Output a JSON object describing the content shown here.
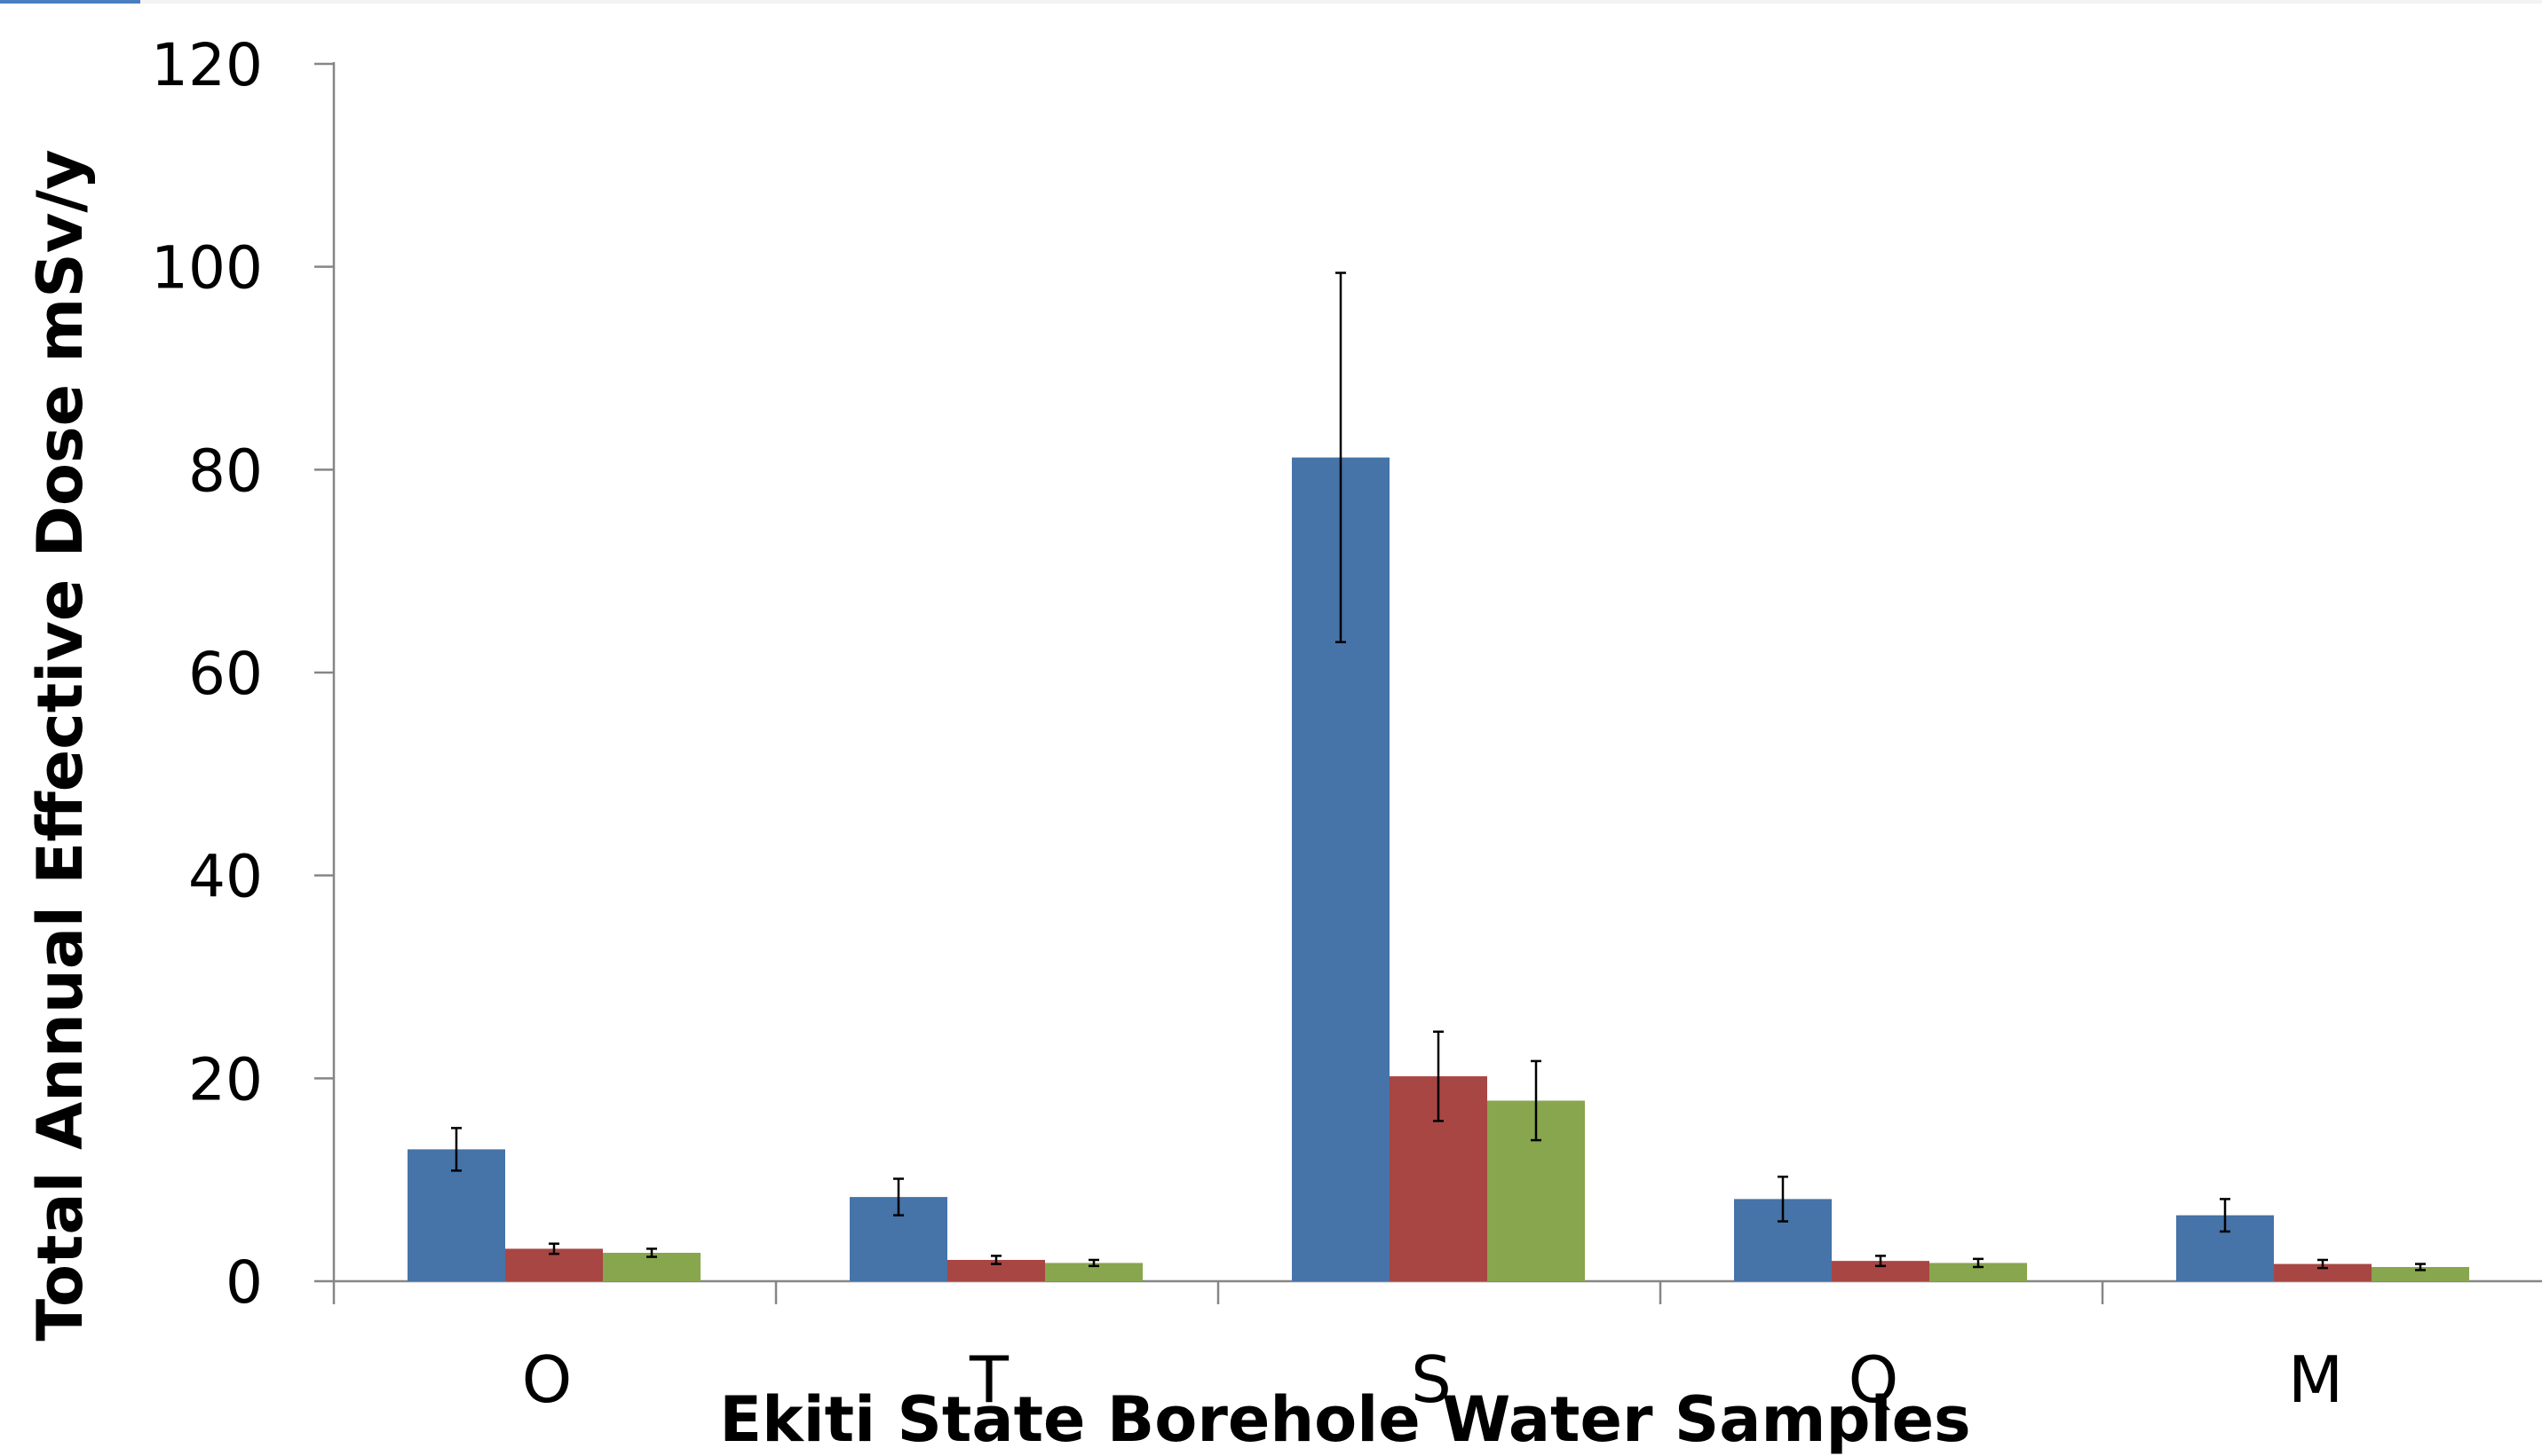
{
  "colors": {
    "series": [
      "#4673a8",
      "#a84643",
      "#88a64d"
    ],
    "axis": "#868686",
    "error_bar": "#000000"
  },
  "chart_data": {
    "type": "bar",
    "title": "",
    "xlabel": "Ekiti State Borehole Water Samples",
    "ylabel": "Total Annual Effective Dose mSv/y",
    "categories": [
      "O",
      "T",
      "S",
      "Q",
      "M"
    ],
    "ylim": [
      0,
      120
    ],
    "yticks": [
      0,
      20,
      40,
      60,
      80,
      100,
      120
    ],
    "grid": false,
    "legend": "none",
    "series": [
      {
        "values": [
          13,
          8.3,
          81.2,
          8.1,
          6.5
        ],
        "errors": [
          2.1,
          1.8,
          18.2,
          2.2,
          1.6
        ]
      },
      {
        "values": [
          3.2,
          2.1,
          20.2,
          2.0,
          1.7
        ],
        "errors": [
          0.5,
          0.4,
          4.4,
          0.5,
          0.4
        ]
      },
      {
        "values": [
          2.8,
          1.8,
          17.8,
          1.8,
          1.4
        ],
        "errors": [
          0.4,
          0.3,
          3.9,
          0.4,
          0.3
        ]
      }
    ]
  }
}
